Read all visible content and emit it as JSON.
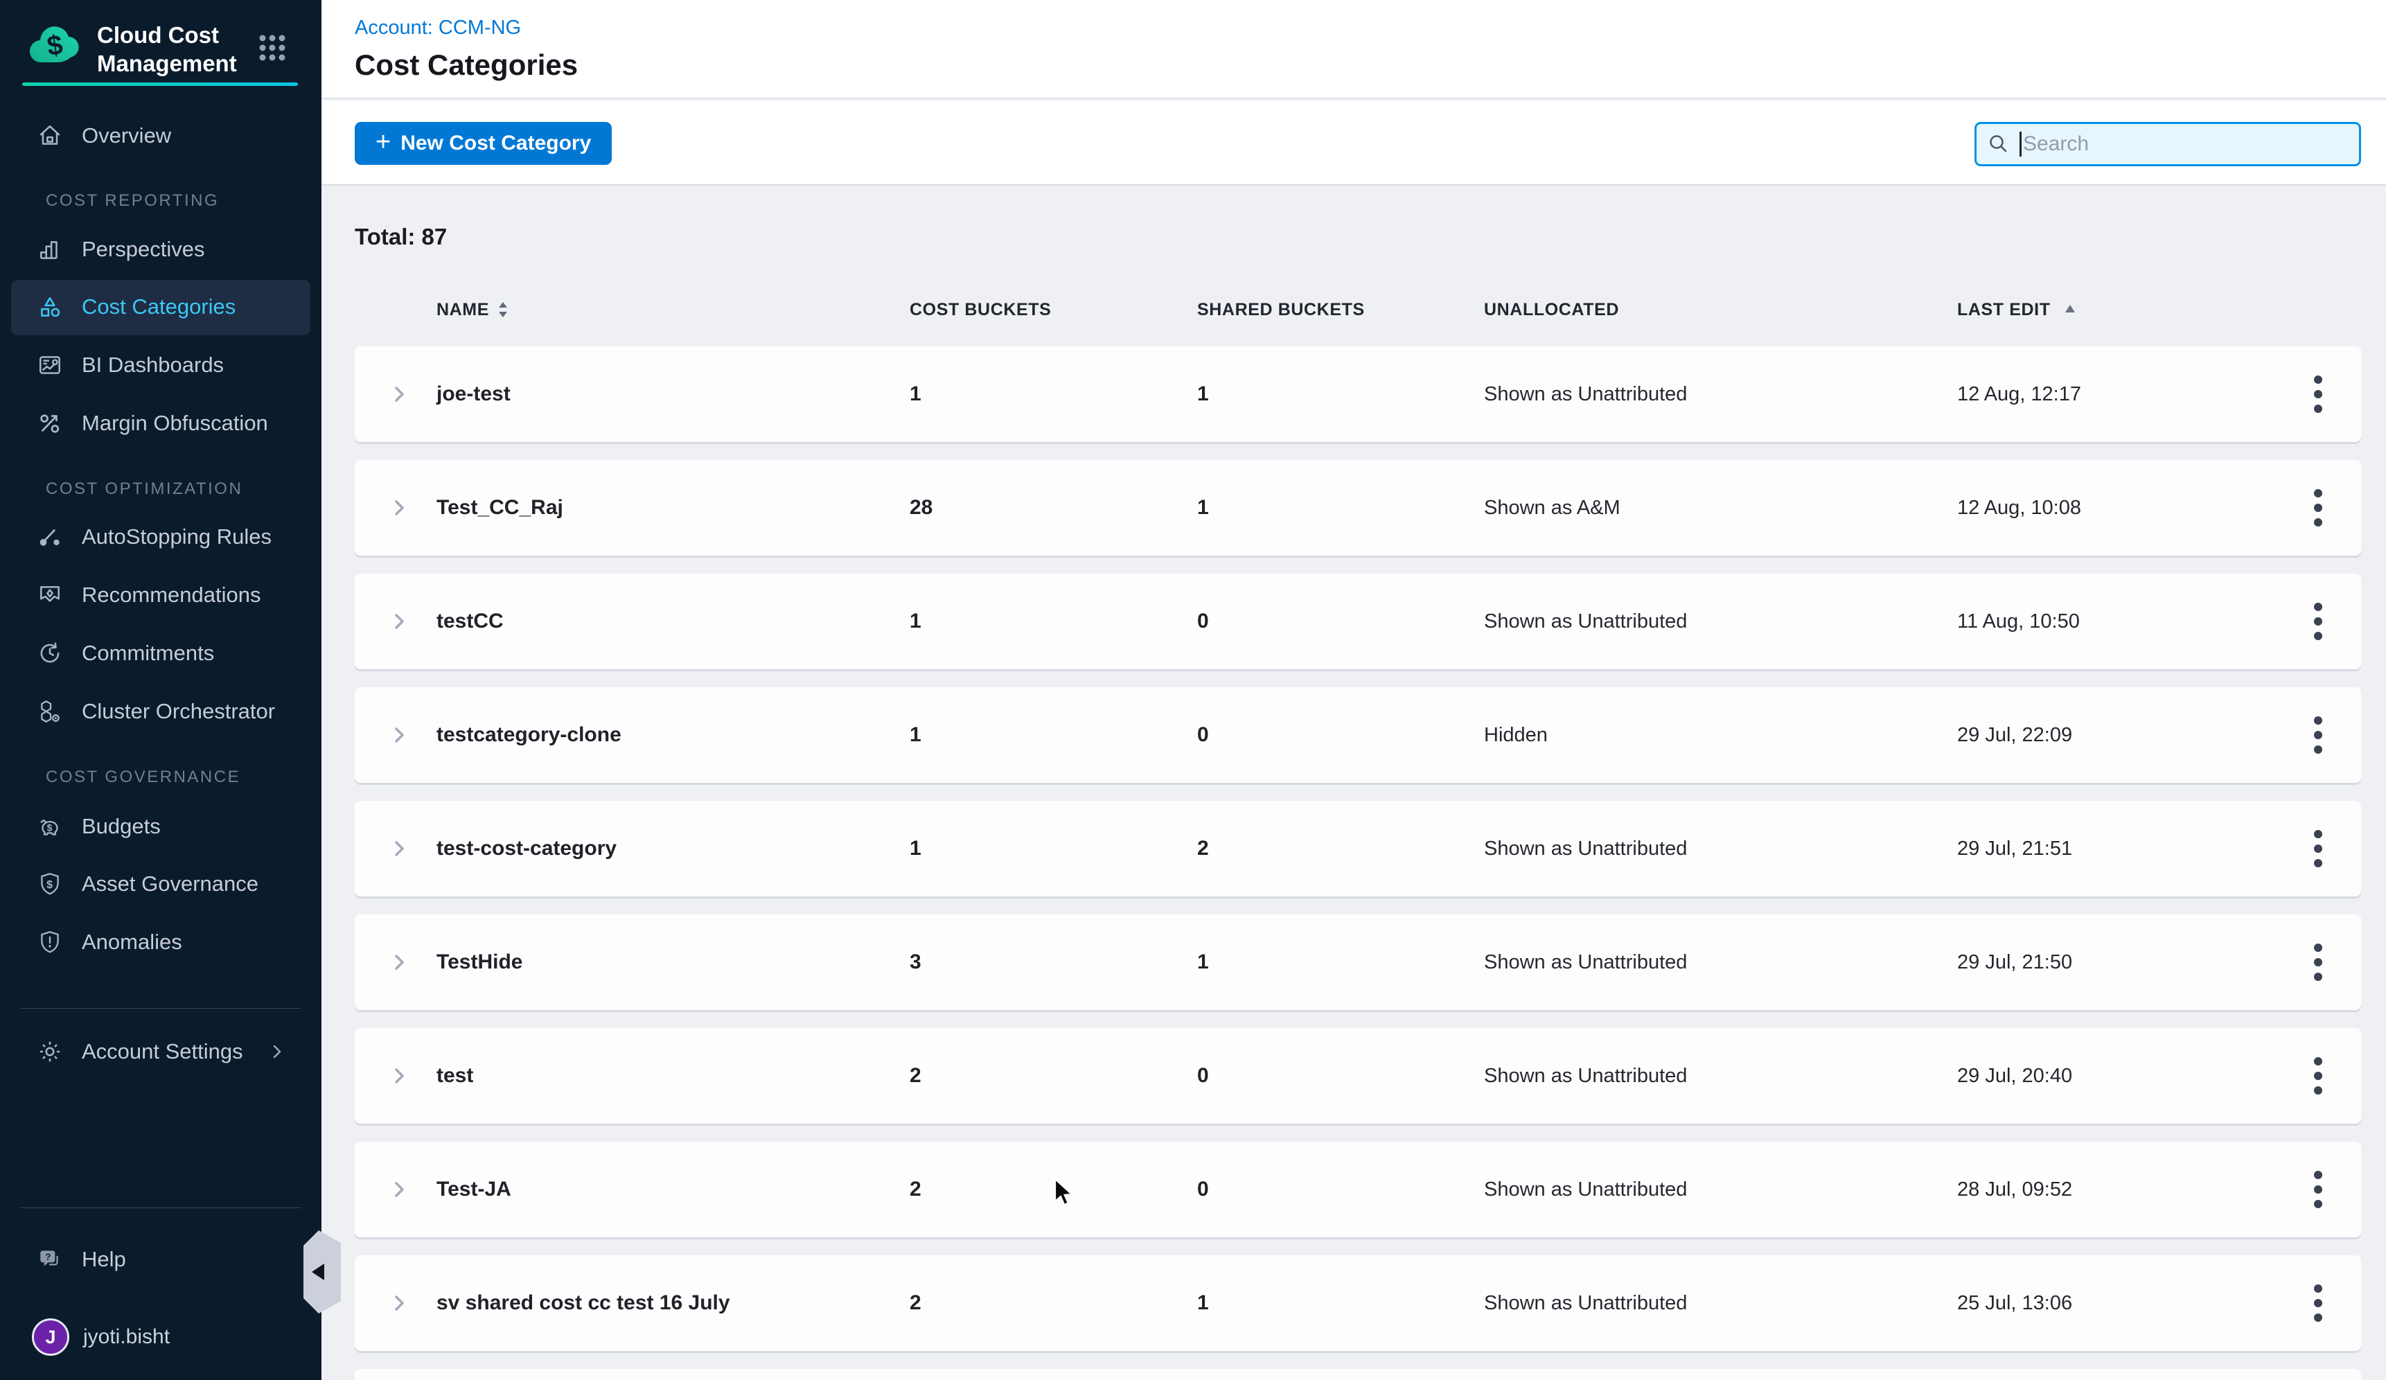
{
  "app": {
    "name": "Cloud Cost Management"
  },
  "sidebar": {
    "overview_label": "Overview",
    "sections": [
      {
        "label": "COST REPORTING",
        "items": [
          {
            "label": "Perspectives"
          },
          {
            "label": "Cost Categories",
            "active": true
          },
          {
            "label": "BI Dashboards"
          },
          {
            "label": "Margin Obfuscation"
          }
        ]
      },
      {
        "label": "COST OPTIMIZATION",
        "items": [
          {
            "label": "AutoStopping Rules"
          },
          {
            "label": "Recommendations"
          },
          {
            "label": "Commitments"
          },
          {
            "label": "Cluster Orchestrator"
          }
        ]
      },
      {
        "label": "COST GOVERNANCE",
        "items": [
          {
            "label": "Budgets"
          },
          {
            "label": "Asset Governance"
          },
          {
            "label": "Anomalies"
          }
        ]
      }
    ],
    "account_settings_label": "Account Settings",
    "help_label": "Help",
    "user": {
      "initial": "J",
      "name": "jyoti.bisht"
    }
  },
  "header": {
    "breadcrumb": "Account: CCM-NG",
    "title": "Cost Categories"
  },
  "toolbar": {
    "plus_glyph": "+",
    "new_cost_category_label": "New Cost Category",
    "search_placeholder": "Search"
  },
  "summary": {
    "total_label": "Total: 87"
  },
  "table": {
    "columns": {
      "name": "NAME",
      "cost_buckets": "COST BUCKETS",
      "shared_buckets": "SHARED BUCKETS",
      "unallocated": "UNALLOCATED",
      "last_edit": "LAST EDIT"
    },
    "rows": [
      {
        "name": "joe-test",
        "cost_buckets": "1",
        "shared_buckets": "1",
        "unallocated": "Shown as Unattributed",
        "last_edit": "12 Aug, 12:17"
      },
      {
        "name": "Test_CC_Raj",
        "cost_buckets": "28",
        "shared_buckets": "1",
        "unallocated": "Shown as A&M",
        "last_edit": "12 Aug, 10:08"
      },
      {
        "name": "testCC",
        "cost_buckets": "1",
        "shared_buckets": "0",
        "unallocated": "Shown as Unattributed",
        "last_edit": "11 Aug, 10:50"
      },
      {
        "name": "testcategory-clone",
        "cost_buckets": "1",
        "shared_buckets": "0",
        "unallocated": "Hidden",
        "last_edit": "29 Jul, 22:09"
      },
      {
        "name": "test-cost-category",
        "cost_buckets": "1",
        "shared_buckets": "2",
        "unallocated": "Shown as Unattributed",
        "last_edit": "29 Jul, 21:51"
      },
      {
        "name": "TestHide",
        "cost_buckets": "3",
        "shared_buckets": "1",
        "unallocated": "Shown as Unattributed",
        "last_edit": "29 Jul, 21:50"
      },
      {
        "name": "test",
        "cost_buckets": "2",
        "shared_buckets": "0",
        "unallocated": "Shown as Unattributed",
        "last_edit": "29 Jul, 20:40"
      },
      {
        "name": "Test-JA",
        "cost_buckets": "2",
        "shared_buckets": "0",
        "unallocated": "Shown as Unattributed",
        "last_edit": "28 Jul, 09:52"
      },
      {
        "name": "sv shared cost cc test 16 July",
        "cost_buckets": "2",
        "shared_buckets": "1",
        "unallocated": "Shown as Unattributed",
        "last_edit": "25 Jul, 13:06"
      }
    ]
  },
  "colors": {
    "primary_blue": "#0278d5",
    "active_link": "#3cc8f4",
    "accent_teal": "#0bd0c4",
    "sidebar_bg": "#0a1b2c",
    "search_border": "#0092e4"
  }
}
